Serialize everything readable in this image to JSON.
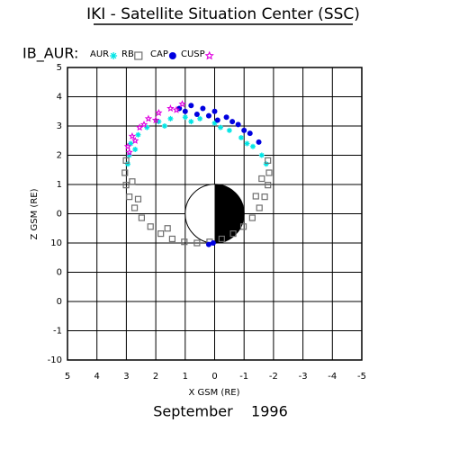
{
  "chart_data": {
    "type": "scatter",
    "title": "IKI - Satellite Situation Center (SSC)",
    "subtitle": "IB_AUR:",
    "footer": "September    1996",
    "x_label": "X GSM (RE)",
    "y_label": "Z GSM (RE)",
    "xlim": [
      5,
      -5
    ],
    "ylim": [
      -5,
      5
    ],
    "xticks": [
      5,
      4,
      3,
      2,
      1,
      0,
      -1,
      -2,
      -3,
      -4,
      -5
    ],
    "yticks": [
      5,
      4,
      3,
      2,
      1,
      0,
      {
        "value": -1,
        "label": "10"
      },
      {
        "value": -2,
        "label": "0"
      },
      {
        "value": -3,
        "label": "0"
      },
      {
        "value": -4,
        "label": "-1"
      },
      {
        "value": -5,
        "label": "-10"
      }
    ],
    "grid": true,
    "series": [
      {
        "name": "AUR",
        "color": "#00e5e5",
        "marker": "asterisk",
        "x": [
          2.9,
          2.85,
          2.6,
          2.3,
          1.9,
          1.5,
          1.0,
          0.5,
          0.0,
          -0.5,
          -0.9,
          -1.3,
          -1.6,
          -1.75,
          2.95,
          2.7,
          1.7,
          0.8,
          -0.2,
          -1.1
        ],
        "y": [
          2.0,
          2.4,
          2.7,
          2.95,
          3.15,
          3.25,
          3.3,
          3.25,
          3.1,
          2.85,
          2.6,
          2.3,
          2.0,
          1.7,
          1.7,
          2.2,
          3.0,
          3.15,
          2.95,
          2.4
        ]
      },
      {
        "name": "RB",
        "color": "#6e6e6e",
        "marker": "square",
        "x": [
          3.01,
          3.05,
          3.01,
          2.9,
          2.72,
          2.48,
          2.18,
          1.83,
          1.44,
          1.03,
          0.6,
          0.17,
          -0.24,
          -0.63,
          -0.98,
          -1.28,
          -1.52,
          -1.7,
          -1.81,
          -1.85,
          -1.81,
          2.8,
          2.6,
          1.6,
          -1.4,
          -1.6
        ],
        "y": [
          1.82,
          1.4,
          0.98,
          0.58,
          0.2,
          -0.14,
          -0.44,
          -0.68,
          -0.86,
          -0.96,
          -1.0,
          -0.96,
          -0.86,
          -0.68,
          -0.44,
          -0.14,
          0.2,
          0.58,
          0.98,
          1.4,
          1.82,
          1.1,
          0.5,
          -0.5,
          0.6,
          1.2
        ]
      },
      {
        "name": "CAP",
        "color": "#0000e0",
        "marker": "dot",
        "x": [
          1.2,
          0.8,
          0.4,
          0.0,
          -0.4,
          -0.8,
          -1.2,
          -1.5,
          0.6,
          -0.1,
          0.05,
          0.2,
          1.0,
          0.2,
          -0.6,
          -1.0
        ],
        "y": [
          3.6,
          3.7,
          3.6,
          3.5,
          3.3,
          3.05,
          2.75,
          2.45,
          3.4,
          3.2,
          -1.0,
          -1.05,
          3.5,
          3.35,
          3.15,
          2.85
        ]
      },
      {
        "name": "CUSP",
        "color": "#e000e0",
        "marker": "star",
        "x": [
          2.95,
          2.8,
          2.55,
          2.25,
          1.9,
          1.5,
          1.1,
          2.7,
          2.0,
          1.3,
          2.9,
          2.4
        ],
        "y": [
          2.3,
          2.65,
          2.95,
          3.25,
          3.45,
          3.6,
          3.75,
          2.5,
          3.2,
          3.55,
          2.1,
          3.05
        ]
      }
    ]
  }
}
